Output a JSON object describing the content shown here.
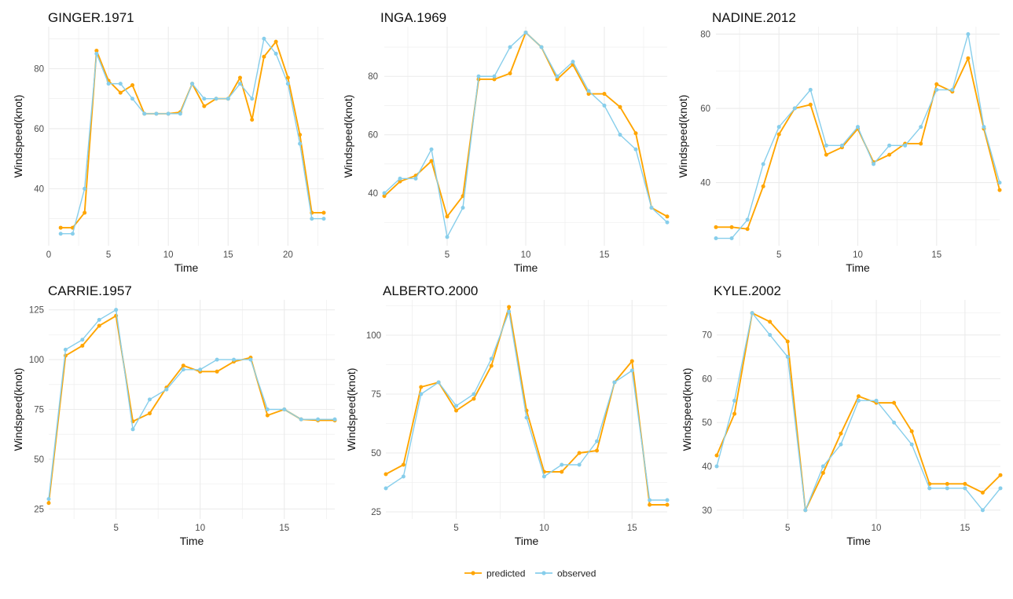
{
  "chart_data": [
    {
      "type": "line",
      "title": "GINGER.1971",
      "xlabel": "Time",
      "ylabel": "Windspeed(knot)",
      "xlim": [
        0,
        23
      ],
      "ylim": [
        21,
        94
      ],
      "xticks": [
        0,
        5,
        10,
        15,
        20
      ],
      "yticks": [
        40,
        60,
        80
      ],
      "x": [
        1,
        2,
        3,
        4,
        5,
        6,
        7,
        8,
        9,
        10,
        11,
        12,
        13,
        14,
        15,
        16,
        17,
        18,
        19,
        20,
        21,
        22,
        23
      ],
      "series": [
        {
          "name": "predicted",
          "values": [
            27,
            27,
            32,
            86,
            76,
            72,
            74.5,
            65,
            65,
            65,
            65.5,
            75,
            67.5,
            70,
            70,
            77,
            63,
            84,
            89,
            77,
            58,
            32,
            32
          ]
        },
        {
          "name": "observed",
          "values": [
            25,
            25,
            40,
            85,
            75,
            75,
            70,
            65,
            65,
            65,
            65,
            75,
            70,
            70,
            70,
            75,
            70,
            90,
            85,
            75,
            55,
            30,
            30
          ]
        }
      ]
    },
    {
      "type": "line",
      "title": "INGA.1969",
      "xlabel": "Time",
      "ylabel": "Windspeed(knot)",
      "xlim": [
        1,
        19
      ],
      "ylim": [
        22,
        97
      ],
      "xticks": [
        5,
        10,
        15
      ],
      "yticks": [
        40,
        60,
        80
      ],
      "x": [
        1,
        2,
        3,
        4,
        5,
        6,
        7,
        8,
        9,
        10,
        11,
        12,
        13,
        14,
        15,
        16,
        17,
        18,
        19
      ],
      "series": [
        {
          "name": "predicted",
          "values": [
            39,
            44,
            46,
            51,
            32,
            39,
            79,
            79,
            81,
            95,
            90,
            79,
            84,
            74,
            74,
            69.5,
            60.5,
            35,
            32
          ]
        },
        {
          "name": "observed",
          "values": [
            40,
            45,
            45,
            55,
            25,
            35,
            80,
            80,
            90,
            95,
            90,
            80,
            85,
            75,
            70,
            60,
            55,
            35,
            30
          ]
        }
      ]
    },
    {
      "type": "line",
      "title": "NADINE.2012",
      "xlabel": "Time",
      "ylabel": "Windspeed(knot)",
      "xlim": [
        1,
        19
      ],
      "ylim": [
        23,
        82
      ],
      "xticks": [
        5,
        10,
        15
      ],
      "yticks": [
        40,
        60,
        80
      ],
      "x": [
        1,
        2,
        3,
        4,
        5,
        6,
        7,
        8,
        9,
        10,
        11,
        12,
        13,
        14,
        15,
        16,
        17,
        18,
        19
      ],
      "series": [
        {
          "name": "predicted",
          "values": [
            28,
            28,
            27.5,
            39,
            53,
            60,
            61,
            47.5,
            49.5,
            54.5,
            45.5,
            47.5,
            50.5,
            50.5,
            66.5,
            64.5,
            73.5,
            54.5,
            38
          ]
        },
        {
          "name": "observed",
          "values": [
            25,
            25,
            30,
            45,
            55,
            60,
            65,
            50,
            50,
            55,
            45,
            50,
            50,
            55,
            65,
            65,
            80,
            55,
            40
          ]
        }
      ]
    },
    {
      "type": "line",
      "title": "CARRIE.1957",
      "xlabel": "Time",
      "ylabel": "Windspeed(knot)",
      "xlim": [
        1,
        18
      ],
      "ylim": [
        20,
        130
      ],
      "xticks": [
        5,
        10,
        15
      ],
      "yticks": [
        25,
        50,
        75,
        100,
        125
      ],
      "x": [
        1,
        2,
        3,
        4,
        5,
        6,
        7,
        8,
        9,
        10,
        11,
        12,
        13,
        14,
        15,
        16,
        17,
        18
      ],
      "series": [
        {
          "name": "predicted",
          "values": [
            28,
            102,
            107,
            117,
            122,
            69,
            73,
            86,
            97,
            94,
            94,
            99,
            101,
            72,
            75,
            70,
            69.5,
            69.5
          ]
        },
        {
          "name": "observed",
          "values": [
            30,
            105,
            110,
            120,
            125,
            65,
            80,
            85,
            95,
            95,
            100,
            100,
            100,
            75,
            75,
            70,
            70,
            70
          ]
        }
      ]
    },
    {
      "type": "line",
      "title": "ALBERTO.2000",
      "xlabel": "Time",
      "ylabel": "Windspeed(knot)",
      "xlim": [
        1,
        17
      ],
      "ylim": [
        22,
        115
      ],
      "xticks": [
        5,
        10,
        15
      ],
      "yticks": [
        25,
        50,
        75,
        100
      ],
      "x": [
        1,
        2,
        3,
        4,
        5,
        6,
        7,
        8,
        9,
        10,
        11,
        12,
        13,
        14,
        15,
        16,
        17
      ],
      "series": [
        {
          "name": "predicted",
          "values": [
            41,
            45,
            78,
            80,
            68,
            73,
            87,
            112,
            68,
            42,
            42,
            50,
            51,
            80,
            89,
            28,
            28
          ]
        },
        {
          "name": "observed",
          "values": [
            35,
            40,
            75,
            80,
            70,
            75,
            90,
            110,
            65,
            40,
            45,
            45,
            55,
            80,
            85,
            30,
            30
          ]
        }
      ]
    },
    {
      "type": "line",
      "title": "KYLE.2002",
      "xlabel": "Time",
      "ylabel": "Windspeed(knot)",
      "xlim": [
        1,
        17
      ],
      "ylim": [
        28,
        78
      ],
      "xticks": [
        5,
        10,
        15
      ],
      "yticks": [
        30,
        40,
        50,
        60,
        70
      ],
      "x": [
        1,
        2,
        3,
        4,
        5,
        6,
        7,
        8,
        9,
        10,
        11,
        12,
        13,
        14,
        15,
        16,
        17
      ],
      "series": [
        {
          "name": "predicted",
          "values": [
            42.5,
            52,
            75,
            73,
            68.5,
            30,
            38.5,
            47.5,
            56,
            54.5,
            54.5,
            48,
            36,
            36,
            36,
            34,
            38
          ]
        },
        {
          "name": "observed",
          "values": [
            40,
            55,
            75,
            70,
            65,
            30,
            40,
            45,
            55,
            55,
            50,
            45,
            35,
            35,
            35,
            30,
            35
          ]
        }
      ]
    }
  ],
  "legend": {
    "position": "bottom",
    "items": [
      {
        "label": "predicted",
        "color": "#FFA500"
      },
      {
        "label": "observed",
        "color": "#87CEEB"
      }
    ]
  },
  "colors": {
    "predicted": "#FFA500",
    "observed": "#87CEEB",
    "grid": "#EBEBEB"
  }
}
